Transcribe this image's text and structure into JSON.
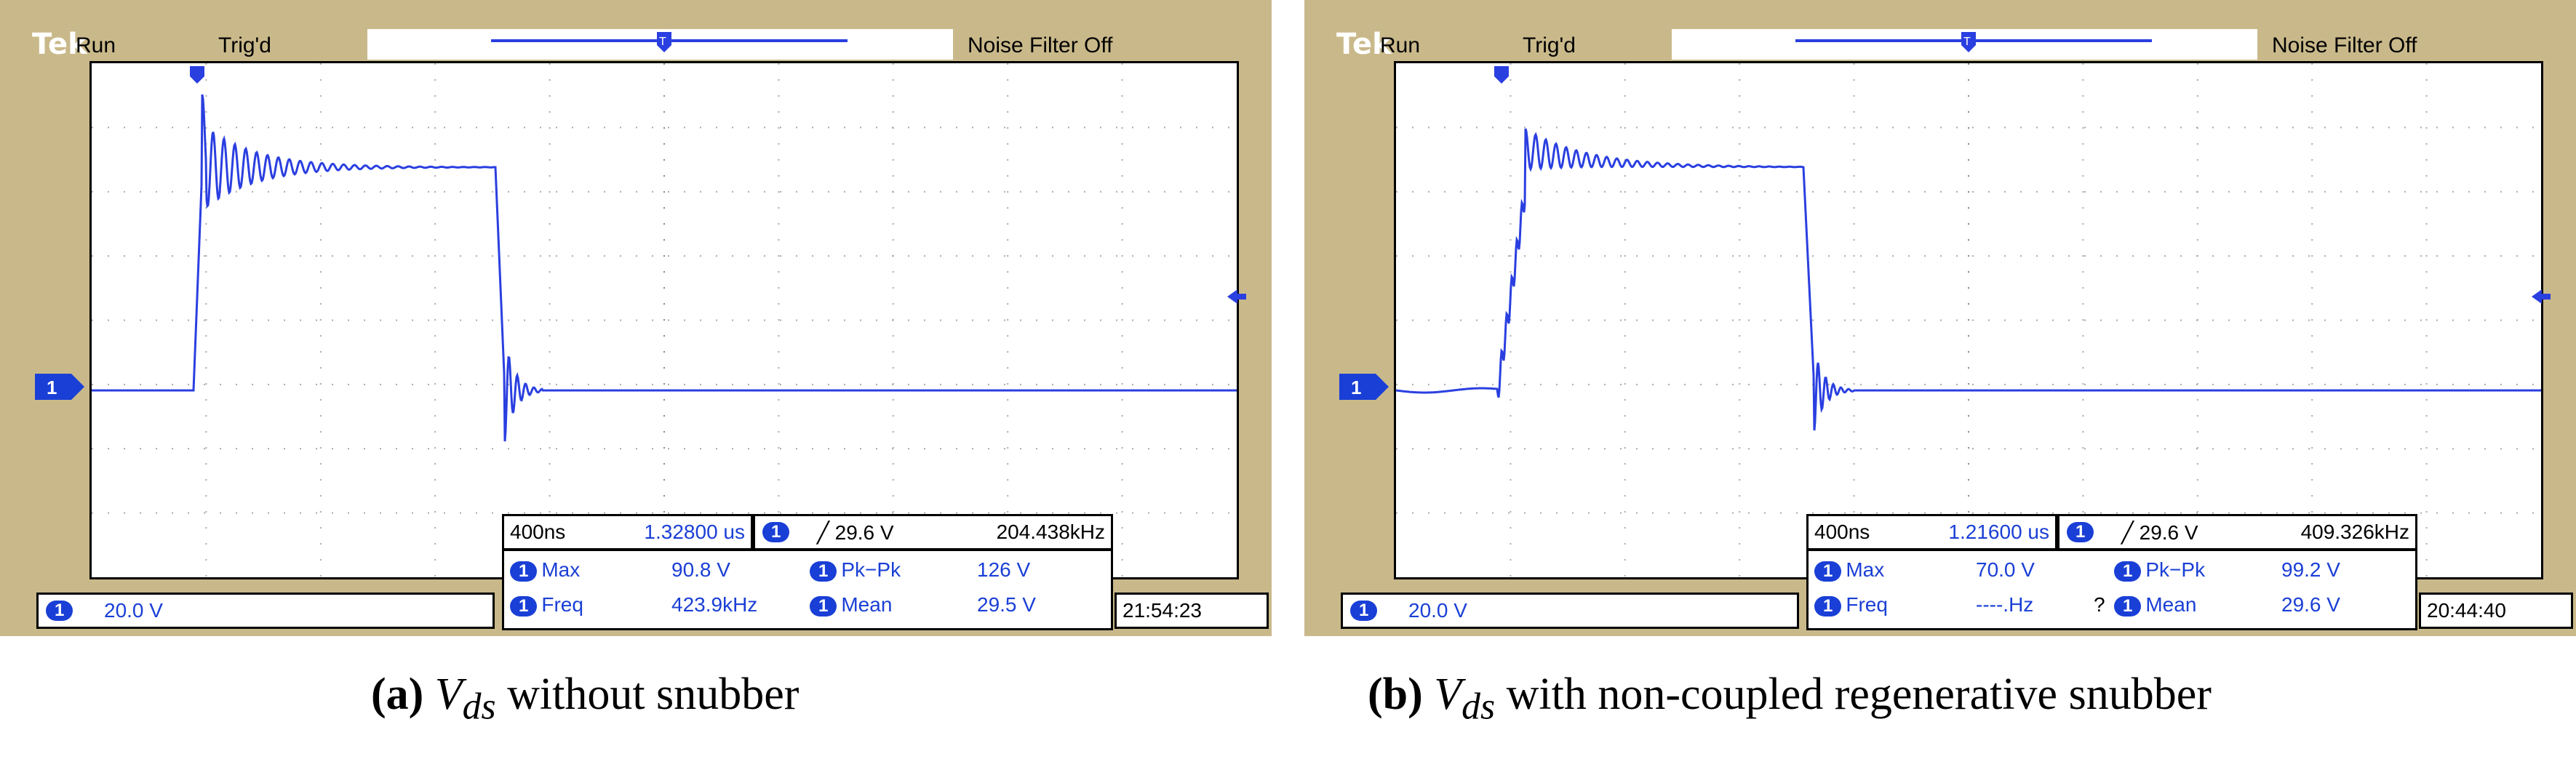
{
  "panels": [
    {
      "id": "a",
      "brand": "Tek",
      "run_label": "Run",
      "trigger_status": "Trig'd",
      "noise_filter": "Noise Filter Off",
      "channel": "1",
      "volts_per_div": "20.0 V",
      "time_per_div": "400ns",
      "cursor_time": "1.32800 us",
      "trigger_level": "╱ 29.6 V",
      "trigger_freq": "204.438kHz",
      "measurements": {
        "max_label": "Max",
        "max_value": "90.8 V",
        "pkpk_label": "Pk−Pk",
        "pkpk_value": "126 V",
        "freq_label": "Freq",
        "freq_value": "423.9kHz",
        "mean_label": "Mean",
        "mean_value": "29.5 V",
        "freq_flag": ""
      },
      "clock": "21:54:23",
      "caption_label": "(a)",
      "caption_var": "V",
      "caption_sub": "ds",
      "caption_text": " without snubber"
    },
    {
      "id": "b",
      "brand": "Tek",
      "run_label": "Run",
      "trigger_status": "Trig'd",
      "noise_filter": "Noise Filter Off",
      "channel": "1",
      "volts_per_div": "20.0 V",
      "time_per_div": "400ns",
      "cursor_time": "1.21600 us",
      "trigger_level": "╱ 29.6 V",
      "trigger_freq": "409.326kHz",
      "measurements": {
        "max_label": "Max",
        "max_value": "70.0 V",
        "pkpk_label": "Pk−Pk",
        "pkpk_value": "99.2 V",
        "freq_label": "Freq",
        "freq_value": "----.Hz",
        "mean_label": "Mean",
        "mean_value": "29.6 V",
        "freq_flag": "?"
      },
      "clock": "20:44:40",
      "caption_label": "(b)",
      "caption_var": "V",
      "caption_sub": "ds",
      "caption_text": " with non-coupled regenerative snubber"
    }
  ],
  "colors": {
    "bezel": "#c9b98a",
    "trace": "#2a3fe0",
    "pill": "#1a3fd6"
  },
  "icons": [
    "trigger-position-icon",
    "channel-1-ground-marker-icon",
    "trigger-level-arrow-icon",
    "cursor-marker-icon"
  ]
}
